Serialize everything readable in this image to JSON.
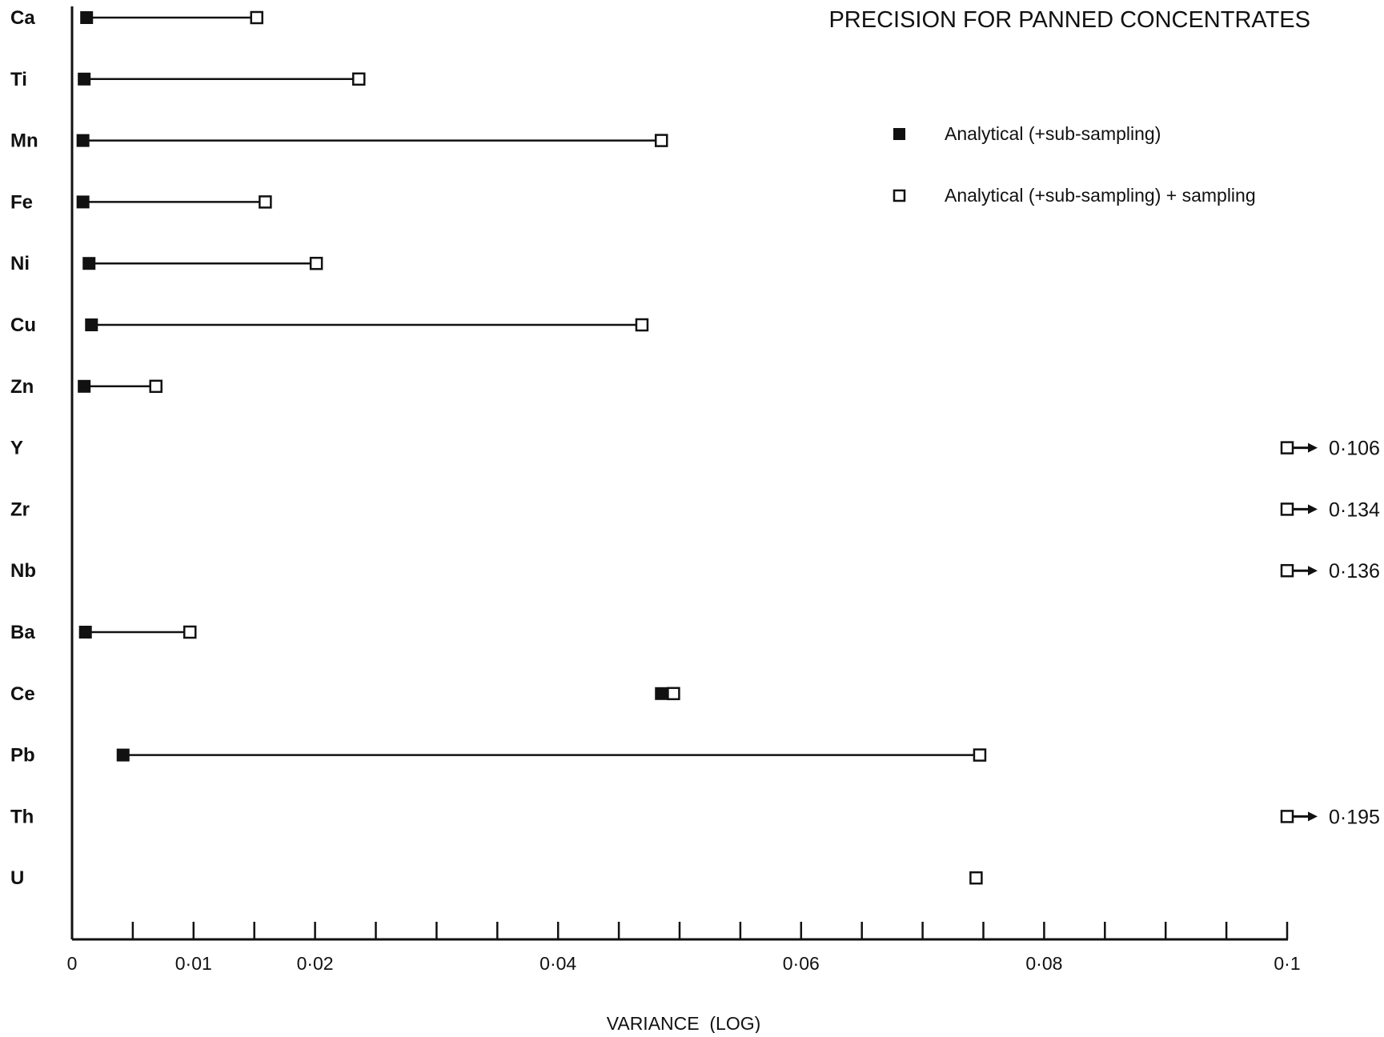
{
  "chart_data": {
    "type": "scatter",
    "title": "PRECISION FOR PANNED CONCENTRATES",
    "xlabel": "VARIANCE  (LOG)",
    "ylabel": "",
    "xlim": [
      0,
      0.1
    ],
    "grid": false,
    "legend_position": "top-right",
    "x_tick_values": [
      0,
      0.005,
      0.01,
      0.015,
      0.02,
      0.025,
      0.03,
      0.035,
      0.04,
      0.045,
      0.05,
      0.055,
      0.06,
      0.065,
      0.07,
      0.075,
      0.08,
      0.085,
      0.09,
      0.095,
      0.1
    ],
    "x_tick_labels": [
      {
        "value": 0,
        "label": "0"
      },
      {
        "value": 0.01,
        "label": "0·01"
      },
      {
        "value": 0.02,
        "label": "0·02"
      },
      {
        "value": 0.04,
        "label": "0·04"
      },
      {
        "value": 0.06,
        "label": "0·06"
      },
      {
        "value": 0.08,
        "label": "0·08"
      },
      {
        "value": 0.1,
        "label": "0·1"
      }
    ],
    "categories": [
      "Ca",
      "Ti",
      "Mn",
      "Fe",
      "Ni",
      "Cu",
      "Zn",
      "Y",
      "Zr",
      "Nb",
      "Ba",
      "Ce",
      "Pb",
      "Th",
      "U"
    ],
    "series": [
      {
        "name": "Analytical (+sub-sampling)",
        "marker": "filled-square",
        "values": [
          0.0012,
          0.001,
          0.0009,
          0.0009,
          0.0014,
          0.0016,
          0.001,
          null,
          null,
          null,
          0.0011,
          0.0485,
          0.0042,
          null,
          null
        ]
      },
      {
        "name": "Analytical (+sub-sampling) + sampling",
        "marker": "open-square",
        "values": [
          0.0152,
          0.0236,
          0.0485,
          0.0159,
          0.0201,
          0.0469,
          0.0069,
          0.106,
          0.134,
          0.136,
          0.0097,
          0.0495,
          0.0747,
          0.195,
          0.0744
        ]
      }
    ],
    "off_scale_labels": [
      {
        "category": "Y",
        "label": "0·106"
      },
      {
        "category": "Zr",
        "label": "0·134"
      },
      {
        "category": "Nb",
        "label": "0·136"
      },
      {
        "category": "Th",
        "label": "0·195"
      }
    ]
  }
}
